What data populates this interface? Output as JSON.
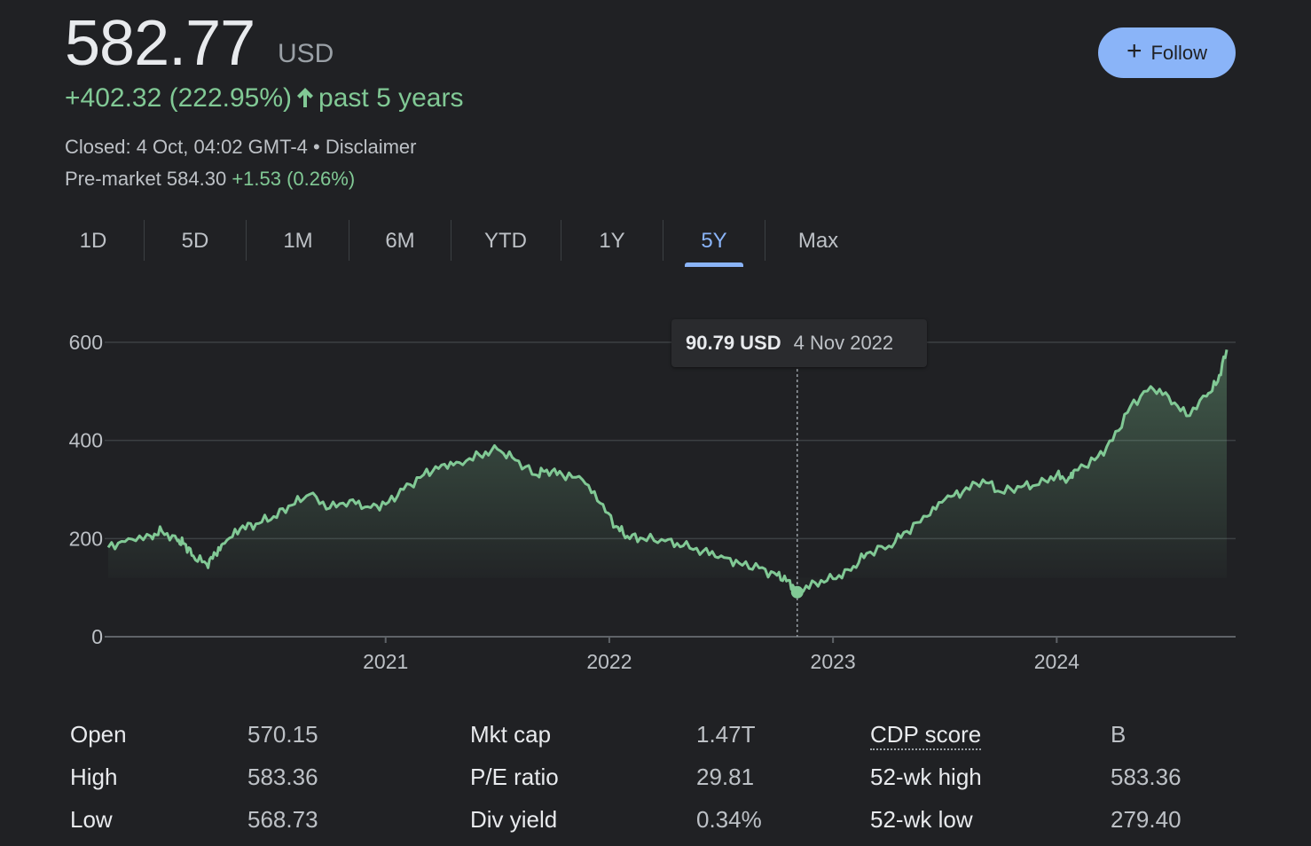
{
  "quote": {
    "price": "582.77",
    "currency": "USD",
    "change_text": "+402.32 (222.95%)",
    "period_text": "past 5 years",
    "closed_text": "Closed: 4 Oct, 04:02 GMT-4 • Disclaimer",
    "premarket_label": "Pre-market 584.30",
    "premarket_change": "+1.53 (0.26%)",
    "up_color": "#81c995",
    "accent_color": "#8ab4f8"
  },
  "follow_button": {
    "label": "Follow",
    "icon": "plus-icon"
  },
  "tabs": [
    {
      "label": "1D",
      "active": false
    },
    {
      "label": "5D",
      "active": false
    },
    {
      "label": "1M",
      "active": false
    },
    {
      "label": "6M",
      "active": false
    },
    {
      "label": "YTD",
      "active": false
    },
    {
      "label": "1Y",
      "active": false
    },
    {
      "label": "5Y",
      "active": true
    },
    {
      "label": "Max",
      "active": false
    }
  ],
  "tooltip": {
    "value": "90.79 USD",
    "date": "4 Nov 2022"
  },
  "chart_data": {
    "type": "area",
    "y_ticks": [
      "0",
      "200",
      "400",
      "600"
    ],
    "ylim": [
      0,
      600
    ],
    "x_tick_labels": [
      "2021",
      "2022",
      "2023",
      "2024"
    ],
    "x_range": [
      2019.76,
      2024.76
    ],
    "grid": true,
    "line_color": "#81c995",
    "highlight": {
      "x": 2022.84,
      "y": 90.79
    },
    "series": [
      {
        "x": [
          2019.76,
          2019.85,
          2019.95,
          2020.0,
          2020.07,
          2020.1,
          2020.14,
          2020.2,
          2020.24,
          2020.28,
          2020.35,
          2020.42,
          2020.5,
          2020.58,
          2020.66,
          2020.75,
          2020.84,
          2020.92,
          2021.0,
          2021.08,
          2021.17,
          2021.25,
          2021.33,
          2021.42,
          2021.5,
          2021.58,
          2021.67,
          2021.72,
          2021.79,
          2021.88,
          2021.96,
          2022.03,
          2022.08,
          2022.15,
          2022.25,
          2022.33,
          2022.42,
          2022.5,
          2022.58,
          2022.67,
          2022.75,
          2022.8,
          2022.84,
          2022.92,
          2023.0,
          2023.08,
          2023.15,
          2023.25,
          2023.33,
          2023.42,
          2023.5,
          2023.58,
          2023.67,
          2023.75,
          2023.84,
          2023.92,
          2024.0,
          2024.05,
          2024.08,
          2024.17,
          2024.25,
          2024.33,
          2024.42,
          2024.5,
          2024.58,
          2024.67,
          2024.72,
          2024.76
        ],
        "y": [
          182,
          200,
          205,
          215,
          195,
          190,
          165,
          148,
          168,
          190,
          220,
          230,
          245,
          268,
          290,
          262,
          278,
          265,
          270,
          300,
          330,
          350,
          355,
          370,
          382,
          360,
          330,
          340,
          330,
          320,
          272,
          225,
          205,
          200,
          195,
          185,
          175,
          165,
          150,
          140,
          125,
          115,
          90.79,
          110,
          118,
          135,
          170,
          185,
          215,
          245,
          280,
          295,
          320,
          295,
          305,
          310,
          330,
          320,
          340,
          360,
          400,
          470,
          510,
          490,
          450,
          490,
          520,
          585
        ]
      }
    ]
  },
  "stats": [
    {
      "label": "Open",
      "value": "570.15"
    },
    {
      "label": "High",
      "value": "583.36"
    },
    {
      "label": "Low",
      "value": "568.73"
    },
    {
      "label": "Mkt cap",
      "value": "1.47T"
    },
    {
      "label": "P/E ratio",
      "value": "29.81"
    },
    {
      "label": "Div yield",
      "value": "0.34%"
    },
    {
      "label": "CDP score",
      "value": "B"
    },
    {
      "label": "52-wk high",
      "value": "583.36"
    },
    {
      "label": "52-wk low",
      "value": "279.40"
    }
  ]
}
